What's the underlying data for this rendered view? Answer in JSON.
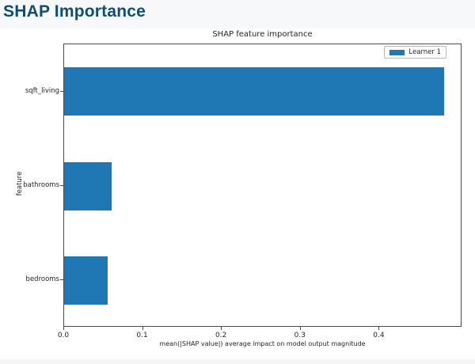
{
  "page": {
    "title": "SHAP Importance"
  },
  "chart_data": {
    "type": "bar",
    "orientation": "horizontal",
    "title": "SHAP feature importance",
    "xlabel": "mean(|SHAP value|) average impact on model output magnitude",
    "ylabel": "feature",
    "categories": [
      "sqft_living",
      "bathrooms",
      "bedrooms"
    ],
    "series": [
      {
        "name": "Learner 1",
        "values": [
          0.482,
          0.06,
          0.055
        ],
        "color": "#1f77b4"
      }
    ],
    "xlim": [
      0,
      0.505
    ],
    "xticks": [
      0.0,
      0.1,
      0.2,
      0.3,
      0.4
    ],
    "xtick_labels": [
      "0.0",
      "0.1",
      "0.2",
      "0.3",
      "0.4"
    ],
    "grid": false,
    "legend": {
      "position": "upper right",
      "entries": [
        "Learner 1"
      ]
    }
  }
}
